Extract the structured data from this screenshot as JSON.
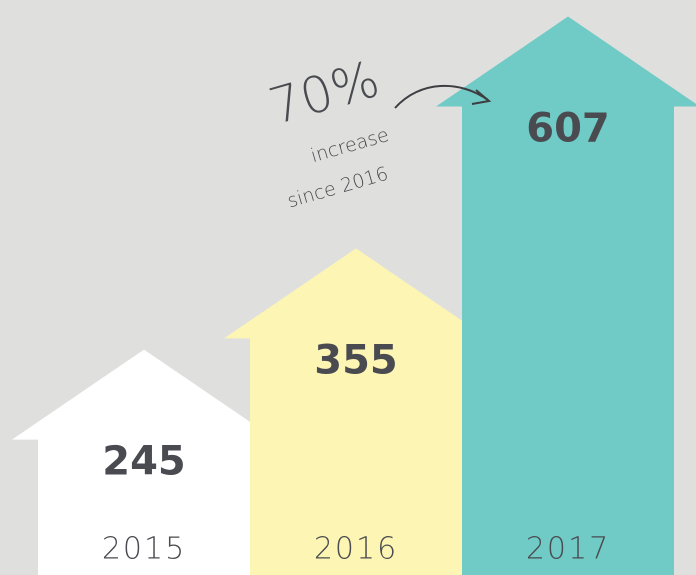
{
  "chart_data": {
    "type": "arrow-bar",
    "categories": [
      "2015",
      "2016",
      "2017"
    ],
    "values": [
      245,
      355,
      607
    ],
    "colors": [
      "#ffffff",
      "#fdf5b3",
      "#70cac5"
    ],
    "annotation": {
      "percent": "70%",
      "line1": "increase",
      "line2": "since 2016"
    }
  }
}
